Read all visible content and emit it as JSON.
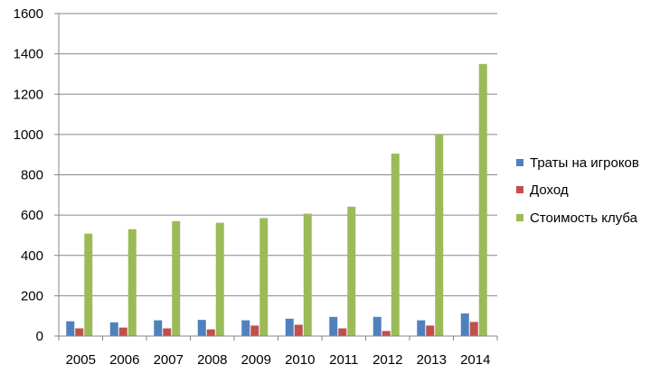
{
  "chart_data": {
    "type": "bar",
    "title": "",
    "xlabel": "",
    "ylabel": "",
    "ylim": [
      0,
      1600
    ],
    "yticks": [
      0,
      200,
      400,
      600,
      800,
      1000,
      1200,
      1400,
      1600
    ],
    "grid": true,
    "legend_position": "right",
    "categories": [
      "2005",
      "2006",
      "2007",
      "2008",
      "2009",
      "2010",
      "2011",
      "2012",
      "2013",
      "2014"
    ],
    "series": [
      {
        "name": "Траты на игроков",
        "color": "#4F81BD",
        "values": [
          73,
          68,
          78,
          80,
          78,
          86,
          95,
          95,
          78,
          112
        ]
      },
      {
        "name": "Доход",
        "color": "#C0504D",
        "values": [
          38,
          42,
          38,
          33,
          52,
          56,
          38,
          25,
          52,
          70
        ]
      },
      {
        "name": "Стоимость клуба",
        "color": "#9BBB59",
        "values": [
          508,
          530,
          570,
          562,
          585,
          607,
          642,
          905,
          1000,
          1350
        ]
      }
    ]
  }
}
